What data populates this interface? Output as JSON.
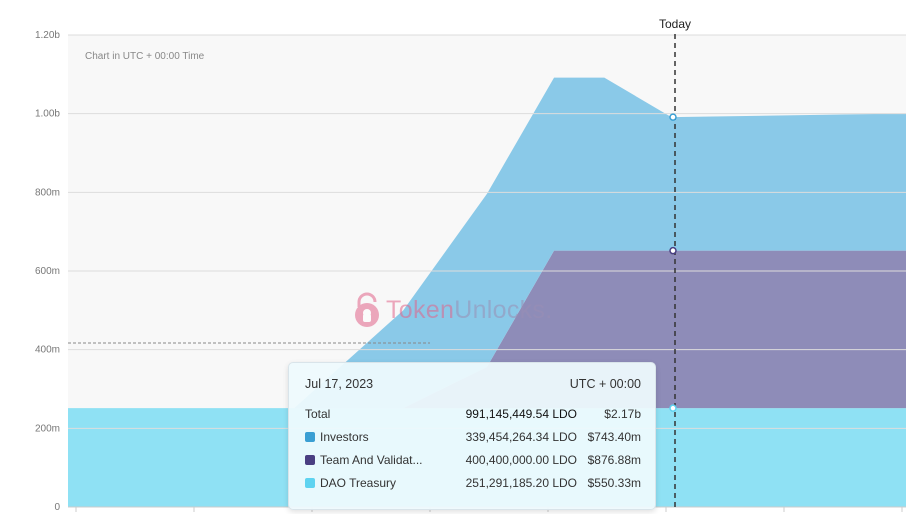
{
  "chart_data": {
    "type": "area",
    "stacked": true,
    "note": "Chart in UTC + 00:00 Time",
    "ylim": [
      0,
      1200000000
    ],
    "yticks": [
      {
        "value": 0,
        "label": "0"
      },
      {
        "value": 200000000,
        "label": "200m"
      },
      {
        "value": 400000000,
        "label": "400m"
      },
      {
        "value": 600000000,
        "label": "600m"
      },
      {
        "value": 800000000,
        "label": "800m"
      },
      {
        "value": 1000000000,
        "label": "1.00b"
      },
      {
        "value": 1200000000,
        "label": "1.20b"
      }
    ],
    "today_label": "Today",
    "series": [
      {
        "name": "DAO Treasury",
        "color": "#8fe1f4",
        "points": [
          [
            0,
            251291185.2
          ],
          [
            1,
            251291185.2
          ]
        ]
      },
      {
        "name": "Team And Validat...",
        "color": "#8e8cb8",
        "points": [
          [
            0,
            0
          ],
          [
            0.4,
            0
          ],
          [
            0.5,
            105000000
          ],
          [
            0.58,
            400400000
          ],
          [
            1,
            400400000
          ]
        ]
      },
      {
        "name": "Investors",
        "color": "#8ac9e8",
        "points": [
          [
            0,
            0
          ],
          [
            0.27,
            0
          ],
          [
            0.5,
            440000000
          ],
          [
            0.58,
            440000000
          ],
          [
            0.64,
            440000000
          ],
          [
            0.72,
            339454264.34
          ],
          [
            1,
            348700000
          ]
        ]
      }
    ],
    "grid": true,
    "legend": "none"
  },
  "watermark": {
    "text_a": "Token",
    "text_b": "Unlocks."
  },
  "tooltip": {
    "date": "Jul 17, 2023",
    "timezone": "UTC + 00:00",
    "rows": [
      {
        "name": "Total",
        "amount": "991,145,449.54 LDO",
        "usd": "$2.17b",
        "color": ""
      },
      {
        "name": "Investors",
        "amount": "339,454,264.34 LDO",
        "usd": "$743.40m",
        "color": "#3a9fd3"
      },
      {
        "name": "Team And Validat...",
        "amount": "400,400,000.00 LDO",
        "usd": "$876.88m",
        "color": "#4a3f82"
      },
      {
        "name": "DAO Treasury",
        "amount": "251,291,185.20 LDO",
        "usd": "$550.33m",
        "color": "#5ed3f0"
      }
    ]
  }
}
